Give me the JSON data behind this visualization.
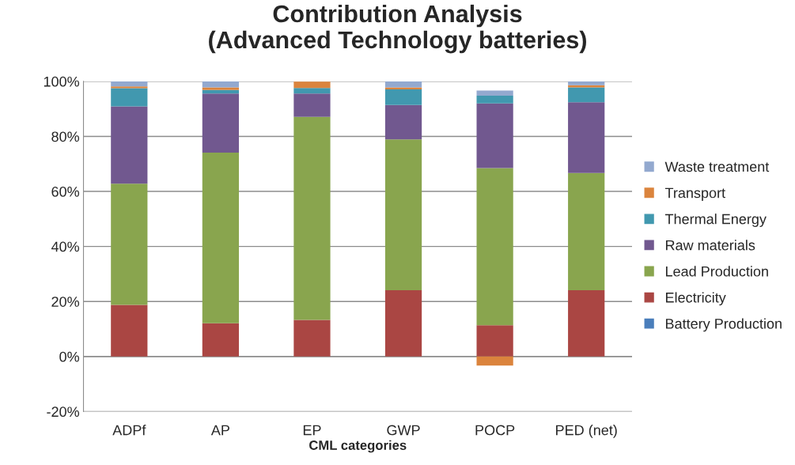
{
  "chart_data": {
    "type": "bar",
    "title": "Contribution Analysis\n(Advanced Technology batteries)",
    "xlabel": "CML categories",
    "categories": [
      "ADPf",
      "AP",
      "EP",
      "GWP",
      "POCP",
      "PED (net)"
    ],
    "stacked": true,
    "series": [
      {
        "name": "Battery Production",
        "color": "#4a7ebb",
        "values": [
          0,
          0,
          0,
          0,
          0,
          0
        ]
      },
      {
        "name": "Electricity",
        "color": "#aa4643",
        "values": [
          18.8,
          12.1,
          13.3,
          24.1,
          11.4,
          24.1
        ]
      },
      {
        "name": "Lead Production",
        "color": "#89a54e",
        "values": [
          44.0,
          62.0,
          73.8,
          54.8,
          57.1,
          42.6
        ]
      },
      {
        "name": "Raw materials",
        "color": "#71588f",
        "values": [
          28.1,
          21.5,
          8.5,
          12.5,
          23.5,
          25.7
        ]
      },
      {
        "name": "Thermal Energy",
        "color": "#4198af",
        "values": [
          6.6,
          1.3,
          2.0,
          5.7,
          2.8,
          5.4
        ]
      },
      {
        "name": "Transport",
        "color": "#db843d",
        "values": [
          0.7,
          0.9,
          2.3,
          0.7,
          -3.3,
          0.8
        ]
      },
      {
        "name": "Waste treatment",
        "color": "#93a9cf",
        "values": [
          1.8,
          2.2,
          0,
          2.2,
          1.9,
          1.4
        ]
      }
    ],
    "ylim": [
      -20,
      100
    ],
    "yticks": [
      {
        "value": -20,
        "label": "-20%"
      },
      {
        "value": 0,
        "label": "0%"
      },
      {
        "value": 20,
        "label": "20%"
      },
      {
        "value": 40,
        "label": "40%"
      },
      {
        "value": 60,
        "label": "60%"
      },
      {
        "value": 80,
        "label": "80%"
      },
      {
        "value": 100,
        "label": "100%"
      }
    ],
    "grid": "y",
    "legend": "right"
  }
}
